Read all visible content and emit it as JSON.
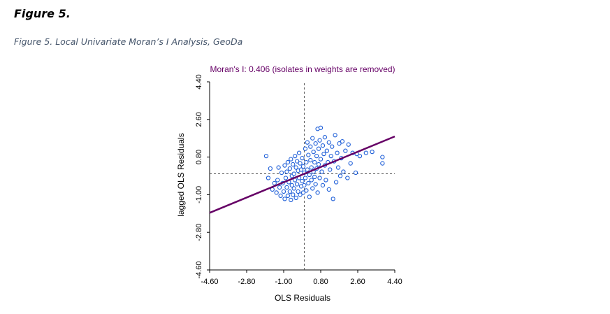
{
  "figure": {
    "heading": "Figure 5.",
    "caption": "Figure 5. Local Univariate Moran’s I Analysis, GeoDa"
  },
  "chart_data": {
    "type": "scatter",
    "title": "Moran's I: 0.406 (isolates in weights are removed)",
    "xlabel": "OLS Residuals",
    "ylabel": "lagged OLS Residuals",
    "xlim": [
      -4.6,
      4.4
    ],
    "ylim": [
      -4.6,
      4.4
    ],
    "xticks": [
      "-4.60",
      "-2.80",
      "-1.00",
      "0.80",
      "2.60",
      "4.40"
    ],
    "yticks": [
      "-4.60",
      "-2.80",
      "-1.00",
      "0.80",
      "2.60",
      "4.40"
    ],
    "grid": false,
    "mean_lines": {
      "x": 0.0,
      "y": 0.0
    },
    "regression": {
      "slope": 0.406,
      "intercept": 0.0
    },
    "colors": {
      "points": "#1f5fd8",
      "line": "#660066",
      "title": "#660066",
      "axes": "#000000",
      "mean_lines": "#555555"
    },
    "points": [
      [
        -1.85,
        0.85
      ],
      [
        -1.75,
        -0.2
      ],
      [
        -1.65,
        0.25
      ],
      [
        -1.55,
        -0.75
      ],
      [
        -1.45,
        -0.45
      ],
      [
        -1.35,
        -0.9
      ],
      [
        -1.3,
        -0.3
      ],
      [
        -1.25,
        0.3
      ],
      [
        -1.2,
        -0.65
      ],
      [
        -1.15,
        -1.05
      ],
      [
        -1.1,
        0.05
      ],
      [
        -1.05,
        -0.45
      ],
      [
        -1.0,
        -0.85
      ],
      [
        -0.95,
        -1.2
      ],
      [
        -0.95,
        0.4
      ],
      [
        -0.9,
        -0.2
      ],
      [
        -0.85,
        -0.65
      ],
      [
        -0.85,
        0.1
      ],
      [
        -0.8,
        -1.05
      ],
      [
        -0.8,
        0.55
      ],
      [
        -0.75,
        -0.4
      ],
      [
        -0.7,
        0.25
      ],
      [
        -0.7,
        -0.85
      ],
      [
        -0.65,
        -1.25
      ],
      [
        -0.65,
        0.7
      ],
      [
        -0.6,
        -0.1
      ],
      [
        -0.6,
        -0.55
      ],
      [
        -0.55,
        0.45
      ],
      [
        -0.55,
        -1.0
      ],
      [
        -0.5,
        0.0
      ],
      [
        -0.5,
        -0.7
      ],
      [
        -0.45,
        0.85
      ],
      [
        -0.45,
        -0.3
      ],
      [
        -0.4,
        -1.15
      ],
      [
        -0.4,
        0.3
      ],
      [
        -0.35,
        -0.5
      ],
      [
        -0.35,
        0.6
      ],
      [
        -0.3,
        -0.85
      ],
      [
        -0.3,
        0.15
      ],
      [
        -0.25,
        -0.2
      ],
      [
        -0.25,
        1.0
      ],
      [
        -0.2,
        -1.0
      ],
      [
        -0.2,
        0.5
      ],
      [
        -0.15,
        -0.6
      ],
      [
        -0.15,
        0.2
      ],
      [
        -0.1,
        -0.35
      ],
      [
        -0.1,
        0.75
      ],
      [
        -0.05,
        -0.9
      ],
      [
        -0.05,
        0.35
      ],
      [
        0.0,
        0.05
      ],
      [
        0.0,
        -0.55
      ],
      [
        0.05,
        1.2
      ],
      [
        0.05,
        -0.2
      ],
      [
        0.1,
        0.55
      ],
      [
        0.1,
        -0.8
      ],
      [
        0.15,
        0.2
      ],
      [
        0.15,
        1.5
      ],
      [
        0.2,
        -0.45
      ],
      [
        0.2,
        0.9
      ],
      [
        0.25,
        -0.05
      ],
      [
        0.25,
        -1.1
      ],
      [
        0.3,
        0.65
      ],
      [
        0.3,
        1.3
      ],
      [
        0.35,
        -0.3
      ],
      [
        0.35,
        0.3
      ],
      [
        0.4,
        1.7
      ],
      [
        0.4,
        -0.7
      ],
      [
        0.45,
        0.1
      ],
      [
        0.45,
        1.05
      ],
      [
        0.5,
        -0.15
      ],
      [
        0.5,
        0.55
      ],
      [
        0.55,
        1.45
      ],
      [
        0.55,
        -0.5
      ],
      [
        0.6,
        0.85
      ],
      [
        0.6,
        0.25
      ],
      [
        0.65,
        2.15
      ],
      [
        0.65,
        -0.9
      ],
      [
        0.7,
        1.2
      ],
      [
        0.7,
        0.45
      ],
      [
        0.75,
        -0.2
      ],
      [
        0.75,
        1.6
      ],
      [
        0.8,
        0.7
      ],
      [
        0.8,
        2.2
      ],
      [
        0.85,
        0.1
      ],
      [
        0.9,
        1.35
      ],
      [
        0.9,
        -0.55
      ],
      [
        0.95,
        0.95
      ],
      [
        1.0,
        1.75
      ],
      [
        1.0,
        0.4
      ],
      [
        1.05,
        -0.3
      ],
      [
        1.1,
        1.1
      ],
      [
        1.15,
        0.55
      ],
      [
        1.2,
        1.5
      ],
      [
        1.2,
        -0.75
      ],
      [
        1.25,
        0.2
      ],
      [
        1.3,
        0.85
      ],
      [
        1.35,
        1.3
      ],
      [
        1.4,
        -1.2
      ],
      [
        1.45,
        0.6
      ],
      [
        1.5,
        1.85
      ],
      [
        1.55,
        -0.4
      ],
      [
        1.6,
        1.0
      ],
      [
        1.65,
        0.3
      ],
      [
        1.7,
        1.45
      ],
      [
        1.75,
        -0.1
      ],
      [
        1.8,
        0.75
      ],
      [
        1.85,
        1.55
      ],
      [
        1.9,
        0.1
      ],
      [
        2.0,
        1.1
      ],
      [
        2.1,
        -0.2
      ],
      [
        2.15,
        1.4
      ],
      [
        2.25,
        0.5
      ],
      [
        2.35,
        1.0
      ],
      [
        2.5,
        0.05
      ],
      [
        2.55,
        0.95
      ],
      [
        2.7,
        0.85
      ],
      [
        3.0,
        1.0
      ],
      [
        3.3,
        1.05
      ],
      [
        3.8,
        0.8
      ],
      [
        3.8,
        0.5
      ]
    ]
  }
}
